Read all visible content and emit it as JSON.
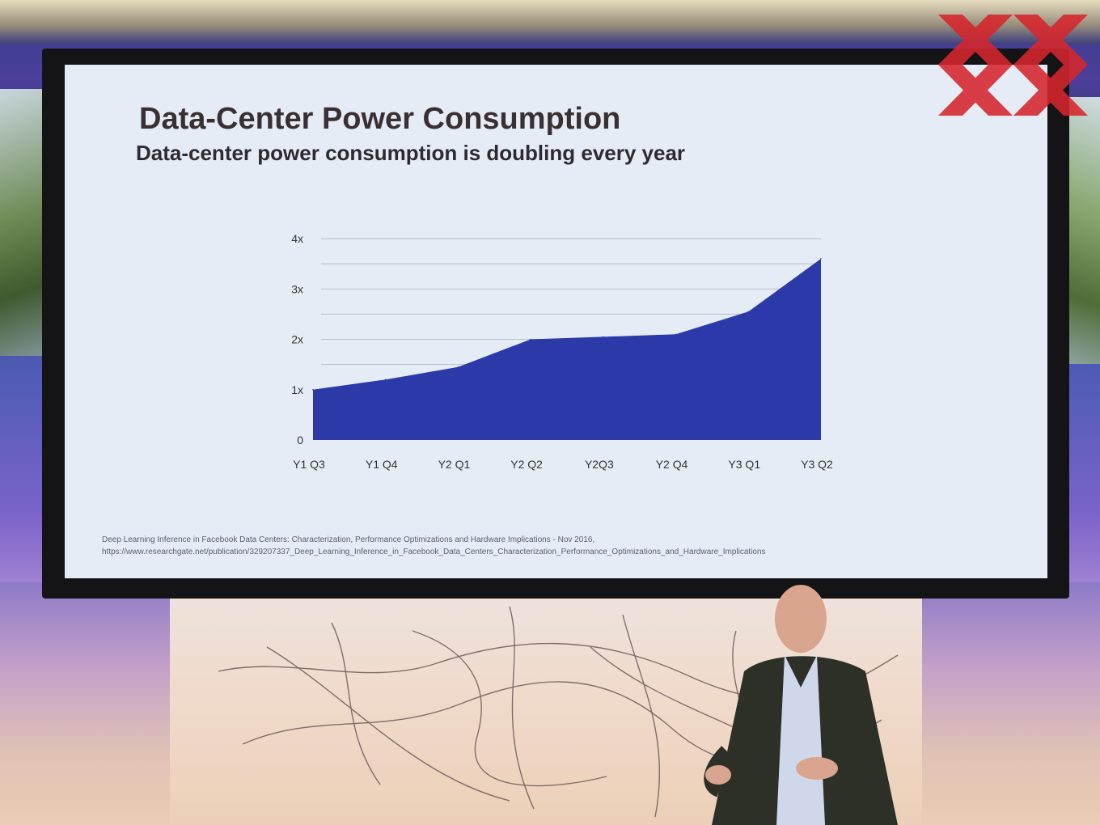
{
  "slide": {
    "title": "Data-Center Power Consumption",
    "subtitle": "Data-center power consumption is doubling every year",
    "footnote_line1": "Deep Learning Inference in Facebook Data Centers: Characterization, Performance Optimizations and Hardware Implications - Nov 2016,",
    "footnote_line2": "https://www.researchgate.net/publication/329207337_Deep_Learning_Inference_in_Facebook_Data_Centers_Characterization_Performance_Optimizations_and_Hardware_Implications"
  },
  "colors": {
    "area_fill": "#2b3aa8",
    "gridline": "#b8bdcc",
    "tick_text": "#333333",
    "logo_red": "#d6262c"
  },
  "chart_data": {
    "type": "area",
    "title": "",
    "xlabel": "",
    "ylabel": "",
    "categories": [
      "Y1 Q3",
      "Y1 Q4",
      "Y2 Q1",
      "Y2 Q2",
      "Y2Q3",
      "Y2 Q4",
      "Y3 Q1",
      "Y3 Q2"
    ],
    "values": [
      1.0,
      1.2,
      1.45,
      2.0,
      2.05,
      2.1,
      2.55,
      3.6
    ],
    "ylim": [
      0,
      4
    ],
    "yticks": [
      {
        "value": 0,
        "label": "0"
      },
      {
        "value": 1,
        "label": "1x"
      },
      {
        "value": 2,
        "label": "2x"
      },
      {
        "value": 3,
        "label": "3x"
      },
      {
        "value": 4,
        "label": "4x"
      }
    ],
    "grid_step": 0.5,
    "grid": true,
    "legend": "none"
  }
}
